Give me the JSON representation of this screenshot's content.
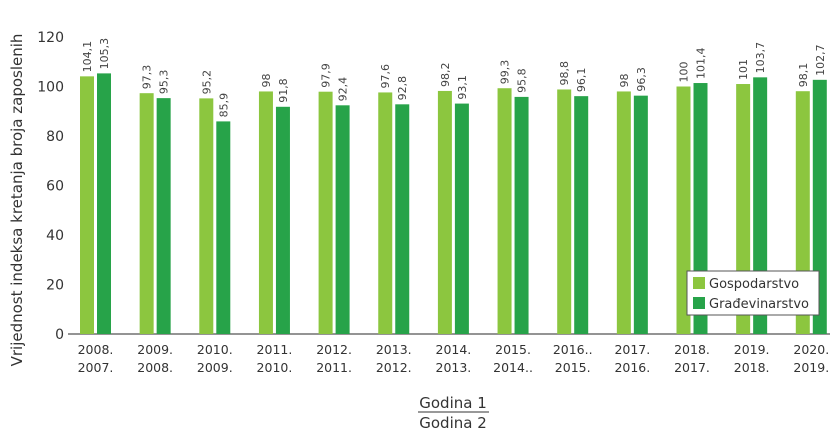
{
  "chart_data": {
    "type": "bar",
    "categories": [
      [
        "2008.",
        "2007."
      ],
      [
        "2009.",
        "2008."
      ],
      [
        "2010.",
        "2009."
      ],
      [
        "2011.",
        "2010."
      ],
      [
        "2012.",
        "2011."
      ],
      [
        "2013.",
        "2012."
      ],
      [
        "2014.",
        "2013."
      ],
      [
        "2015.",
        "2014.."
      ],
      [
        "2016..",
        "2015."
      ],
      [
        "2017.",
        "2016."
      ],
      [
        "2018.",
        "2017."
      ],
      [
        "2019.",
        "2018."
      ],
      [
        "2020.",
        "2019."
      ]
    ],
    "series": [
      {
        "name": "Gospodarstvo",
        "color": "#8cc63f",
        "values": [
          104.1,
          97.3,
          95.2,
          98,
          97.9,
          97.6,
          98.2,
          99.3,
          98.8,
          98,
          100,
          101,
          98.1
        ],
        "labels": [
          "104,1",
          "97,3",
          "95,2",
          "98",
          "97,9",
          "97,6",
          "98,2",
          "99,3",
          "98,8",
          "98",
          "100",
          "101",
          "98,1"
        ]
      },
      {
        "name": "Građevinarstvo",
        "color": "#27a349",
        "values": [
          105.3,
          95.3,
          85.9,
          91.8,
          92.4,
          92.8,
          93.1,
          95.8,
          96.1,
          96.3,
          101.4,
          103.7,
          102.7
        ],
        "labels": [
          "105,3",
          "95,3",
          "85,9",
          "91,8",
          "92,4",
          "92,8",
          "93,1",
          "95,8",
          "96,1",
          "96,3",
          "101,4",
          "103,7",
          "102,7"
        ]
      }
    ],
    "ylabel": "Vrijednost indeksa kretanja broja zaposlenih",
    "xlabel_top": "Godina 1",
    "xlabel_bottom": "Godina 2",
    "ylim": [
      0,
      120
    ],
    "yticks": [
      "0",
      "20",
      "40",
      "60",
      "80",
      "100",
      "120"
    ],
    "grid": false,
    "legend_position": "bottom-right"
  }
}
